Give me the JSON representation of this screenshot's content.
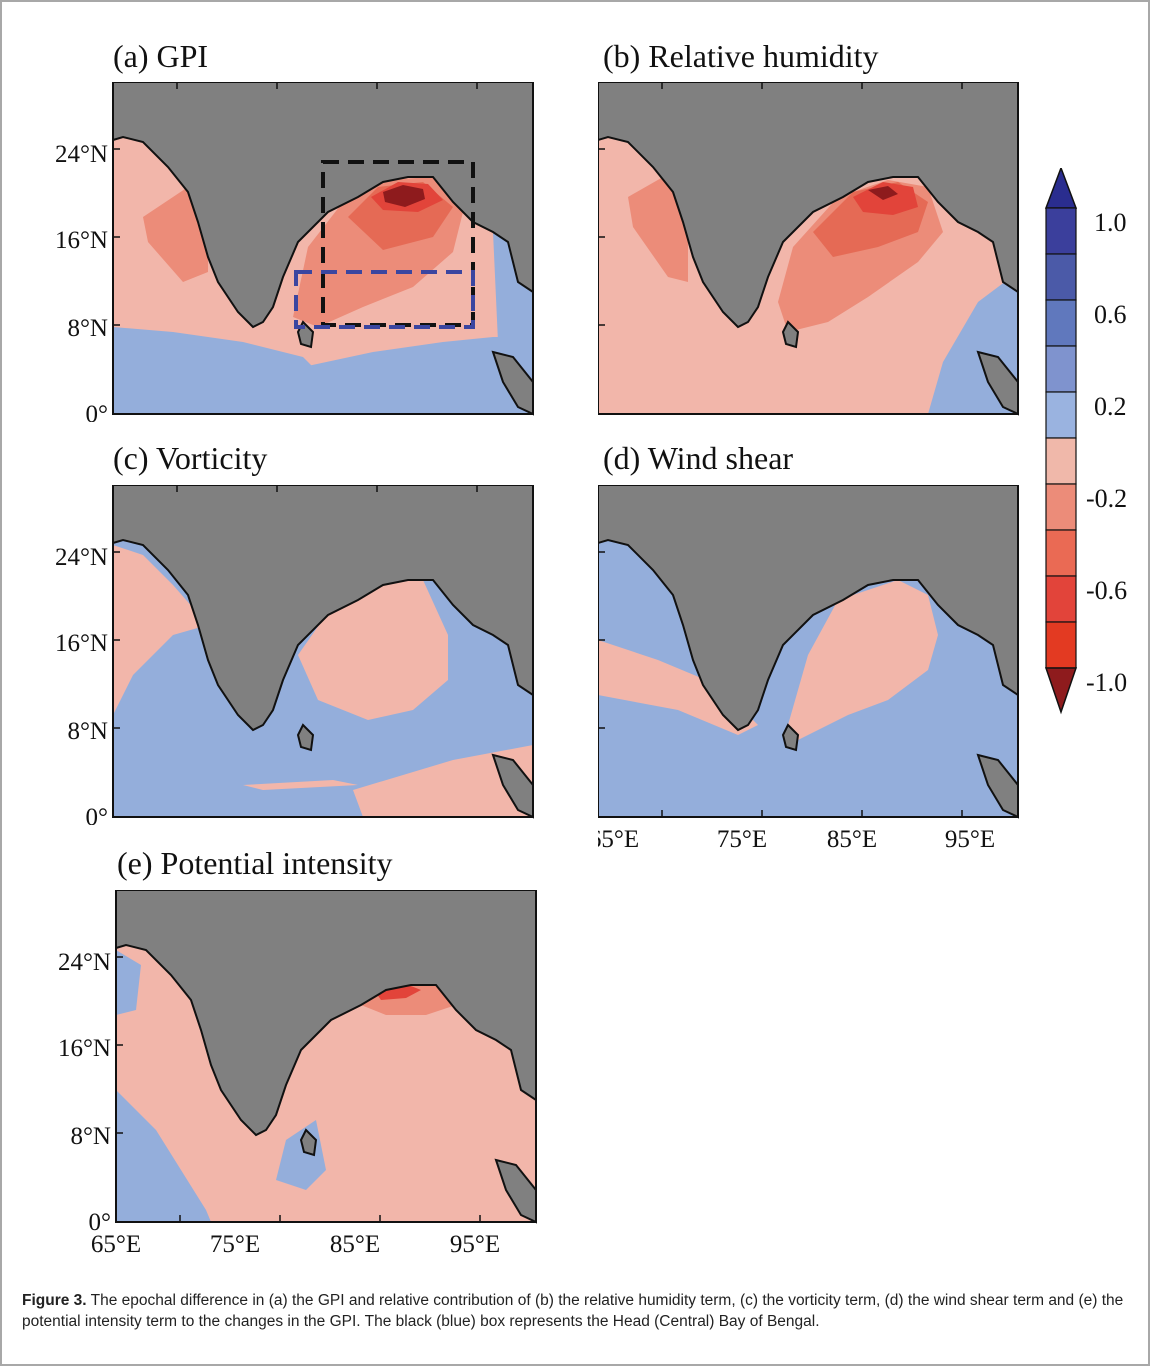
{
  "panels": [
    {
      "id": "a",
      "title": "(a) GPI"
    },
    {
      "id": "b",
      "title": "(b) Relative humidity"
    },
    {
      "id": "c",
      "title": "(c) Vorticity"
    },
    {
      "id": "d",
      "title": "(d) Wind shear"
    },
    {
      "id": "e",
      "title": "(e) Potential intensity"
    }
  ],
  "axes": {
    "lat_ticks": [
      "24°N",
      "16°N",
      "8°N",
      "0°"
    ],
    "lon_ticks": [
      "65°E",
      "75°E",
      "85°E",
      "95°E"
    ]
  },
  "colorbar": {
    "labels": [
      "1.0",
      "0.6",
      "0.2",
      "-0.2",
      "-0.6",
      "-1.0"
    ],
    "colors": [
      "#2a2d8f",
      "#3b3f9c",
      "#4b5aa8",
      "#6078bd",
      "#7f93ce",
      "#9ab3e0",
      "#f0b8aa",
      "#ec8c79",
      "#ea6a54",
      "#e2443a",
      "#e33a22",
      "#8e1b1d"
    ]
  },
  "boxes": {
    "head_color": "#111111",
    "central_color": "#3b46a0"
  },
  "colors": {
    "land": "#808080",
    "positive": "#94aedb",
    "negative_light": "#f2b6aa",
    "negative_mid": "#ec8c79",
    "negative_strong": "#e56a55",
    "negative_dark": "#8e1b1d"
  },
  "caption": {
    "label": "Figure 3.",
    "text": " The epochal difference in (a) the GPI and relative contribution of (b) the relative humidity term, (c) the vorticity term, (d) the wind shear term and (e) the potential intensity term to the changes in the GPI. The black (blue) box represents the Head (Central) Bay of Bengal."
  }
}
